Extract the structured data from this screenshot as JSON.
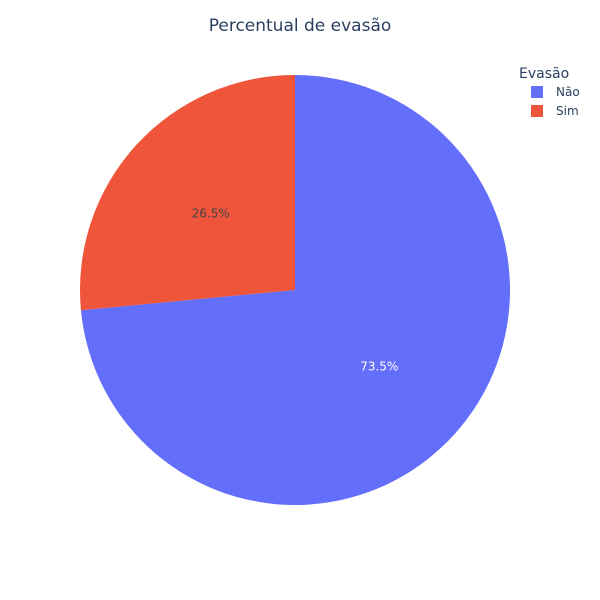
{
  "chart_data": {
    "type": "pie",
    "title": "Percentual de evasão",
    "legend_title": "Evasão",
    "legend_position": "top-right",
    "slices": [
      {
        "label": "Não",
        "value": 73.5,
        "text": "73.5%",
        "color": "#636efa",
        "text_color": "#ffffff"
      },
      {
        "label": "Sim",
        "value": 26.5,
        "text": "26.5%",
        "color": "#ef553b",
        "text_color": "#444444"
      }
    ]
  }
}
